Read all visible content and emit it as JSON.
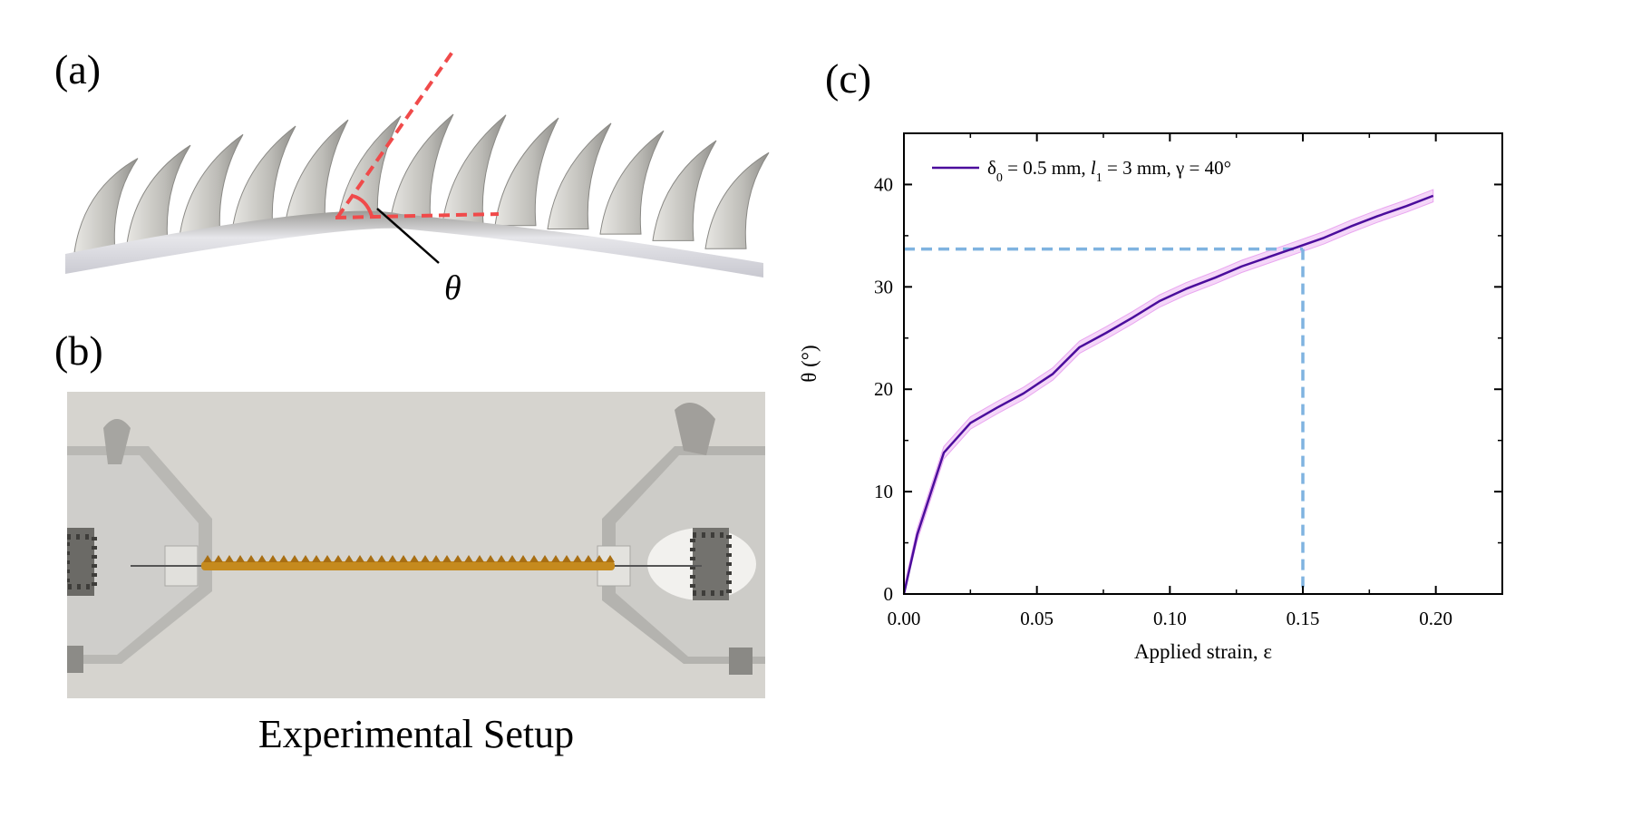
{
  "panels": {
    "a_label": "(a)",
    "b_label": "(b)",
    "c_label": "(c)",
    "theta_symbol": "θ",
    "b_caption": "Experimental Setup"
  },
  "colors": {
    "angle_line": "#f04a4a",
    "series_line": "#4b0d9c",
    "band": "#e9a6f0",
    "guide": "#7fb3e0"
  },
  "chart_data": {
    "type": "line",
    "title": "",
    "xlabel": "Applied strain, ε",
    "ylabel": "θ (°)",
    "xlim": [
      0,
      0.225
    ],
    "ylim": [
      0,
      45
    ],
    "xticks": [
      0.0,
      0.05,
      0.1,
      0.15,
      0.2
    ],
    "xtick_labels": [
      "0.00",
      "0.05",
      "0.10",
      "0.15",
      "0.20"
    ],
    "yticks": [
      0,
      10,
      20,
      30,
      40
    ],
    "ytick_labels": [
      "0",
      "10",
      "20",
      "30",
      "40"
    ],
    "legend": {
      "placement": "top-left",
      "parts": [
        "δ",
        "0",
        " = 0.5 mm, ",
        "l",
        "1",
        " = 3 mm, γ = 40°"
      ]
    },
    "series": [
      {
        "name": "δ0 = 0.5 mm, l1 = 3 mm, γ = 40°",
        "x": [
          0,
          0.005,
          0.015,
          0.025,
          0.035,
          0.045,
          0.056,
          0.066,
          0.076,
          0.086,
          0.096,
          0.106,
          0.117,
          0.127,
          0.137,
          0.147,
          0.158,
          0.168,
          0.178,
          0.189,
          0.199
        ],
        "y": [
          0,
          5.8,
          13.8,
          16.7,
          18.2,
          19.6,
          21.5,
          24.1,
          25.5,
          27.0,
          28.6,
          29.8,
          30.9,
          32.0,
          32.9,
          33.8,
          34.8,
          35.9,
          36.9,
          37.9,
          38.9
        ],
        "band": 0.6
      }
    ],
    "guides": {
      "x": 0.15,
      "y": 33.7
    }
  }
}
